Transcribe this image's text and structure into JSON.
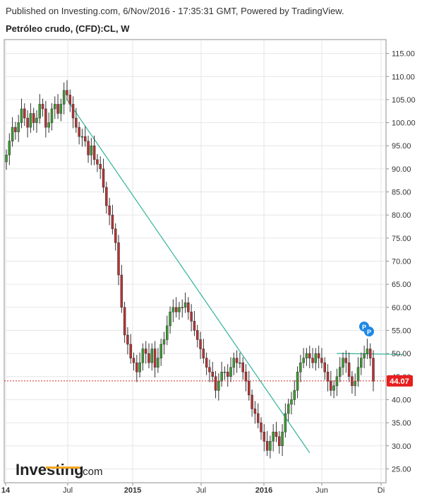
{
  "header": {
    "published": "Published on Investing.com, 6/Nov/2016 - 17:35:31 GMT, Powered by TradingView."
  },
  "chart_title": "Petróleo crudo, (CFD):CL, W",
  "watermark": {
    "brand": "Investing",
    "suffix": ".com"
  },
  "last_price_label": "44.07",
  "pp_marker": {
    "p1": "P",
    "p2": "P"
  },
  "colors": {
    "up": "#3c9a32",
    "down": "#b83232",
    "trendline": "#2fb39a",
    "price_line": "#d32f2f",
    "badge": "#e81e1e",
    "marker": "#1e88e5"
  },
  "chart_data": {
    "type": "candlestick",
    "interval": "W",
    "ylim": [
      22,
      118
    ],
    "y_ticks": [
      "115.00",
      "110.00",
      "105.00",
      "100.00",
      "95.00",
      "90.00",
      "85.00",
      "80.00",
      "75.00",
      "70.00",
      "65.00",
      "60.00",
      "55.00",
      "50.00",
      "45.00",
      "40.00",
      "35.00",
      "30.00",
      "25.00"
    ],
    "x_ticks": [
      {
        "label": "14",
        "bold": true
      },
      {
        "label": "Jul",
        "bold": false
      },
      {
        "label": "2015",
        "bold": true
      },
      {
        "label": "Jul",
        "bold": false
      },
      {
        "label": "2016",
        "bold": true
      },
      {
        "label": "Jun",
        "bold": false
      },
      {
        "label": "Di",
        "bold": false
      }
    ],
    "last_price": 44.07,
    "trendlines": [
      {
        "from": {
          "week": 20,
          "price": 105
        },
        "to": {
          "week": 100,
          "price": 28.5
        }
      },
      {
        "from": {
          "week": 109,
          "price": 50
        },
        "to": {
          "week": 131,
          "price": 49.8
        }
      }
    ],
    "closes": [
      93,
      96,
      99,
      98,
      100,
      103,
      101,
      99,
      102,
      100,
      101,
      104,
      103,
      99,
      100,
      103,
      104,
      102,
      104,
      107,
      106,
      104,
      101,
      99,
      97,
      97,
      96,
      93,
      95,
      92,
      91,
      90,
      86,
      82,
      80,
      77,
      74,
      67,
      60,
      54,
      52,
      49,
      48,
      46,
      48,
      51,
      50,
      48,
      51,
      47,
      49,
      52,
      53,
      56,
      59,
      60,
      59,
      60,
      60,
      61,
      59,
      57,
      55,
      53,
      51,
      49,
      47,
      46,
      45,
      42,
      44,
      46,
      46,
      45,
      47,
      49,
      48,
      48,
      46,
      44,
      41,
      38,
      37,
      35,
      33,
      31,
      29,
      31,
      33,
      32,
      30,
      33,
      37,
      39,
      40,
      42,
      46,
      48,
      49,
      50,
      49,
      48,
      50,
      49,
      48,
      46,
      44,
      42,
      43,
      45,
      47,
      49,
      48,
      45,
      43,
      44,
      47,
      49,
      50,
      51,
      49,
      44
    ]
  }
}
